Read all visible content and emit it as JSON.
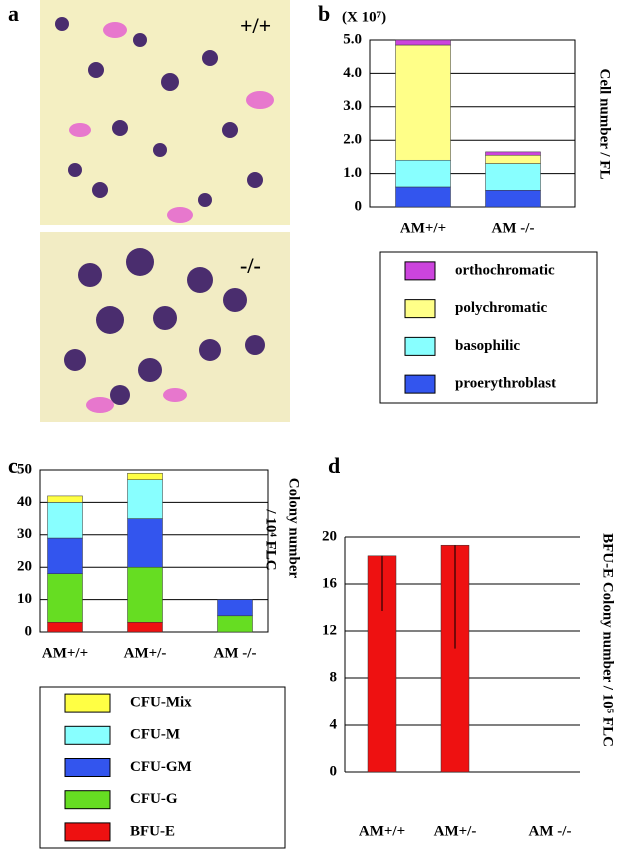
{
  "micrograph": {
    "panel_label": "a",
    "top_label": "+/+",
    "bottom_label": "-/-"
  },
  "chart_data": [
    {
      "type": "stacked_bar",
      "panel_label": "b",
      "unit_label": "(X 10⁷)",
      "y_label": "Cell number / FL",
      "categories": [
        "AM+/+",
        "AM -/-"
      ],
      "series": [
        {
          "name": "proerythroblast",
          "color": "#3355ee",
          "values": [
            0.6,
            0.5
          ]
        },
        {
          "name": "basophilic",
          "color": "#88ffff",
          "values": [
            0.8,
            0.8
          ]
        },
        {
          "name": "polychromatic",
          "color": "#ffff88",
          "values": [
            3.45,
            0.25
          ]
        },
        {
          "name": "orthochromatic",
          "color": "#cc44dd",
          "values": [
            0.15,
            0.1
          ]
        }
      ],
      "ylim": [
        0,
        5
      ],
      "yticks": [
        0,
        {
          "value": 1,
          "label": "1.0"
        },
        {
          "value": 2,
          "label": "2.0"
        },
        {
          "value": 3,
          "label": "3.0"
        },
        {
          "value": 4,
          "label": "4.0"
        },
        {
          "value": 5,
          "label": "5.0"
        }
      ],
      "grid": true
    },
    {
      "type": "stacked_bar",
      "panel_label": "c",
      "y_label": [
        "Colony number",
        "/ 10⁴ FLC"
      ],
      "categories": [
        "AM+/+",
        "AM+/-",
        "AM -/-"
      ],
      "series": [
        {
          "name": "BFU-E",
          "color": "#ee1111",
          "values": [
            3,
            3,
            0
          ]
        },
        {
          "name": "CFU-G",
          "color": "#66dd22",
          "values": [
            15,
            17,
            5
          ]
        },
        {
          "name": "CFU-GM",
          "color": "#3355ee",
          "values": [
            11,
            15,
            5
          ]
        },
        {
          "name": "CFU-M",
          "color": "#88ffff",
          "values": [
            11,
            12,
            0
          ]
        },
        {
          "name": "CFU-Mix",
          "color": "#ffff44",
          "values": [
            2,
            2,
            0
          ]
        }
      ],
      "ylim": [
        0,
        50
      ],
      "yticks": [
        0,
        10,
        20,
        30,
        40,
        50
      ],
      "grid": true
    },
    {
      "type": "bar",
      "panel_label": "d",
      "y_label": "BFU-E Colony number / 10⁵ FLC",
      "categories": [
        "AM+/+",
        "AM+/-",
        "AM -/-"
      ],
      "values": [
        18.4,
        19.3,
        0
      ],
      "errors": [
        4.7,
        8.8,
        null
      ],
      "color": "#ee1111",
      "ylim": [
        0,
        20
      ],
      "yticks": [
        0,
        4,
        8,
        12,
        16,
        20
      ],
      "grid": true
    }
  ]
}
